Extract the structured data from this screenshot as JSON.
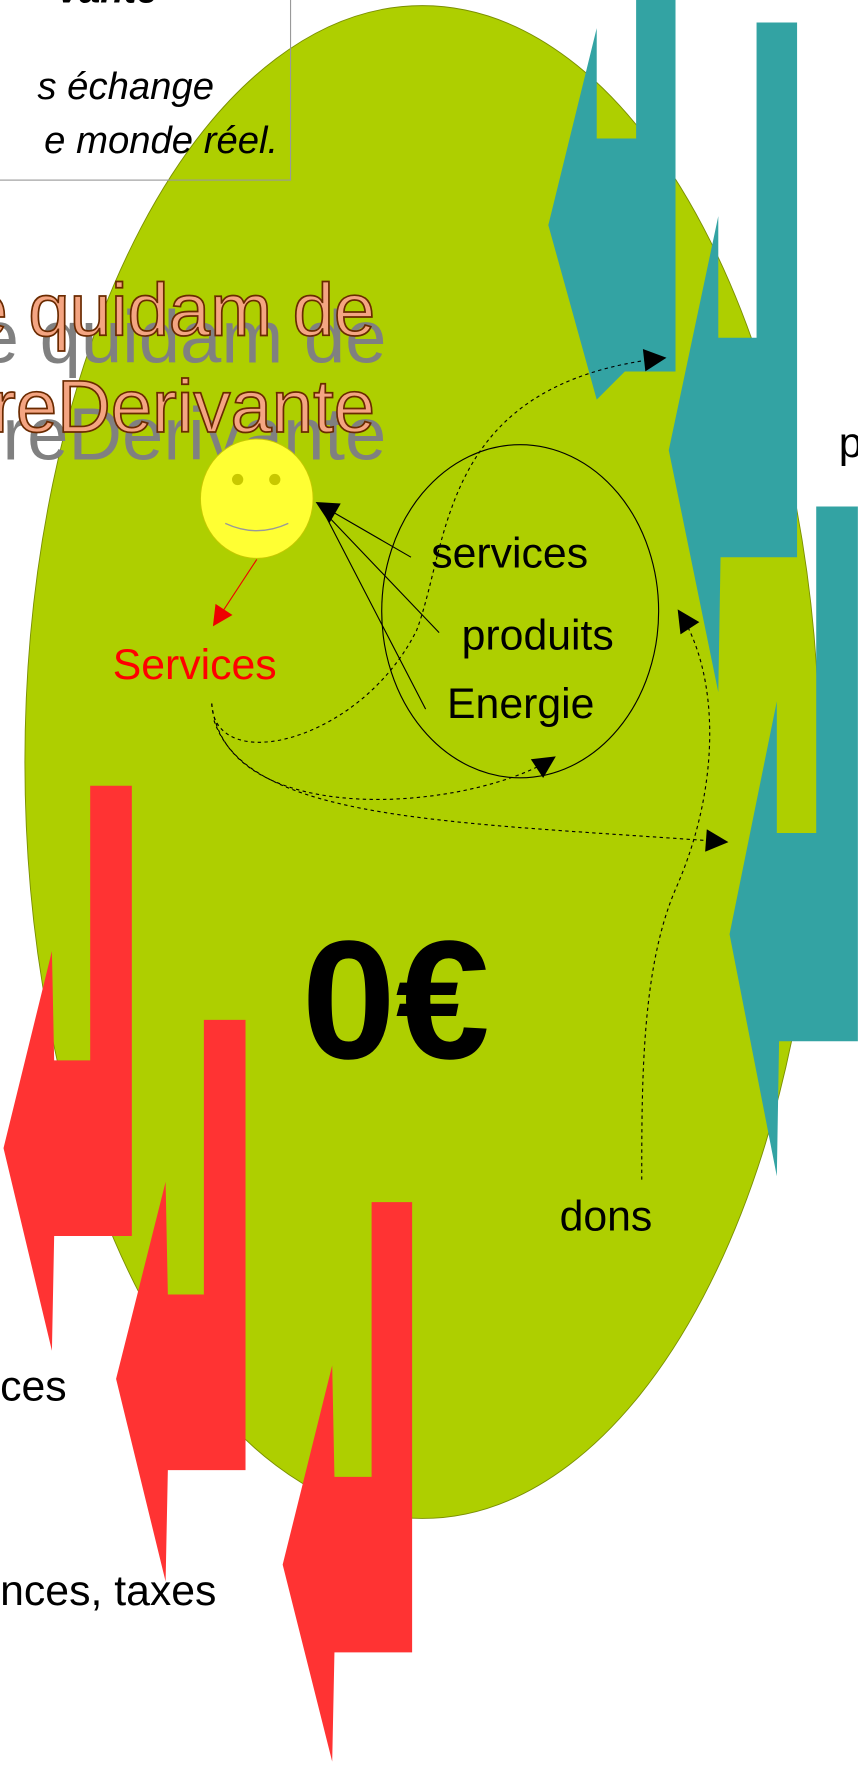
{
  "header": {
    "title": "vante",
    "lines": [
      "s échange",
      "e monde réel."
    ]
  },
  "wordart": {
    "lines": [
      "e quidam de",
      "rreDerivante"
    ]
  },
  "cycle": {
    "items": [
      "services",
      "produits",
      "Energie"
    ]
  },
  "person_output": "Services",
  "center_label": "0€",
  "gift_label": "dons",
  "right_label": "p",
  "left_labels": [
    "ces",
    "nces, taxes"
  ]
}
